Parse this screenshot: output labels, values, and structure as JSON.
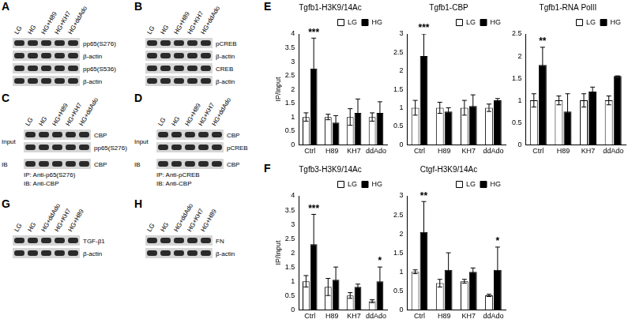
{
  "panels": [
    {
      "label": "A",
      "lanes": [
        "LG",
        "HG",
        "HG+H89",
        "HG+KH7",
        "HG+ddAdo"
      ],
      "rows": [
        {
          "name": "pp65(S276)"
        },
        {
          "name": "β-actin"
        },
        {
          "name": "pp65(S536)"
        },
        {
          "name": "β-actin"
        }
      ],
      "notes": []
    },
    {
      "label": "B",
      "lanes": [
        "LG",
        "HG",
        "HG+H89",
        "HG+KH7",
        "HG+ddAdo"
      ],
      "rows": [
        {
          "name": "pCREB"
        },
        {
          "name": "β-actin"
        },
        {
          "name": "CREB"
        },
        {
          "name": "β-actin"
        }
      ],
      "notes": []
    },
    {
      "label": "C",
      "lanes": [
        "LG",
        "HG",
        "HG+H89",
        "HG+KH7",
        "HG+ddAdo"
      ],
      "rows": [
        {
          "name": "CBP",
          "group": "Input"
        },
        {
          "name": "pp65(S276)",
          "group": "Input"
        },
        {
          "name": "CBP",
          "group": "IB"
        }
      ],
      "notes": [
        "IP: Anti-p65(S276)",
        "IB: Anti-CBP"
      ]
    },
    {
      "label": "D",
      "lanes": [
        "LG",
        "HG",
        "HG+H89",
        "HG+KH7",
        "HG+ddAdo"
      ],
      "rows": [
        {
          "name": "CBP",
          "group": "Input"
        },
        {
          "name": "pCREB",
          "group": "Input"
        },
        {
          "name": "CBP",
          "group": "IB"
        }
      ],
      "notes": [
        "IP: Anti-pCREB",
        "IB: Anti-CBP"
      ]
    },
    {
      "label": "G",
      "lanes": [
        "LG",
        "HG",
        "HG+ddAdo",
        "HG+KH7",
        "HG+H89"
      ],
      "rows": [
        {
          "name": "TGF-β1"
        },
        {
          "name": "β-actin"
        }
      ],
      "notes": []
    },
    {
      "label": "H",
      "lanes": [
        "LG",
        "HG",
        "HG+ddAdo",
        "HG+KH7",
        "HG+H89"
      ],
      "rows": [
        {
          "name": "FN"
        },
        {
          "name": "β-actin"
        }
      ],
      "notes": []
    }
  ],
  "chart_panel_labels": [
    "E",
    "F"
  ],
  "chart_data": [
    {
      "type": "bar",
      "title": "Tgfb1-H3K9/14Ac",
      "y_label": "IP/Input",
      "categories": [
        "Ctrl",
        "H89",
        "KH7",
        "ddAdo"
      ],
      "series": [
        {
          "name": "LG",
          "color": "#ffffff",
          "values": [
            1.0,
            1.0,
            1.0,
            1.0
          ],
          "errors": [
            0.15,
            0.1,
            0.3,
            0.15
          ]
        },
        {
          "name": "HG",
          "color": "#000000",
          "values": [
            2.75,
            0.8,
            1.15,
            1.15
          ],
          "errors": [
            1.1,
            0.25,
            0.5,
            0.4
          ]
        }
      ],
      "ylim": [
        0,
        4
      ],
      "yticks": [
        0,
        0.5,
        1,
        1.5,
        2,
        2.5,
        3,
        3.5,
        4
      ],
      "grid": false,
      "legend": "upper right",
      "annotations": [
        {
          "text": "***",
          "category": "Ctrl",
          "series": "HG"
        }
      ]
    },
    {
      "type": "bar",
      "title": "Tgfb1-CBP",
      "categories": [
        "Ctrl",
        "H89",
        "KH7",
        "ddAdo"
      ],
      "series": [
        {
          "name": "LG",
          "color": "#ffffff",
          "values": [
            1.0,
            1.0,
            1.0,
            1.0
          ],
          "errors": [
            0.2,
            0.15,
            0.2,
            0.1
          ]
        },
        {
          "name": "HG",
          "color": "#000000",
          "values": [
            2.4,
            0.9,
            1.05,
            1.2
          ],
          "errors": [
            0.6,
            0.1,
            0.3,
            0.05
          ]
        }
      ],
      "ylim": [
        0,
        3
      ],
      "yticks": [
        0,
        0.5,
        1,
        1.5,
        2,
        2.5,
        3
      ],
      "grid": false,
      "legend": "upper right",
      "annotations": [
        {
          "text": "***",
          "category": "Ctrl",
          "series": "HG"
        }
      ]
    },
    {
      "type": "bar",
      "title": "Tgfb1-RNA PolII",
      "categories": [
        "Ctrl",
        "H89",
        "KH7",
        "ddAdo"
      ],
      "series": [
        {
          "name": "LG",
          "color": "#ffffff",
          "values": [
            1.0,
            1.0,
            1.0,
            1.0
          ],
          "errors": [
            0.15,
            0.1,
            0.15,
            0.1
          ]
        },
        {
          "name": "HG",
          "color": "#000000",
          "values": [
            1.8,
            0.75,
            1.2,
            1.55
          ],
          "errors": [
            0.4,
            0.4,
            0.1,
            0
          ]
        }
      ],
      "ylim": [
        0,
        2.5
      ],
      "yticks": [
        0,
        0.5,
        1,
        1.5,
        2,
        2.5
      ],
      "grid": false,
      "legend": "upper right",
      "annotations": [
        {
          "text": "**",
          "category": "Ctrl",
          "series": "HG"
        }
      ]
    },
    {
      "type": "bar",
      "title": "Tgfb3-H3K9/14Ac",
      "y_label": "IP/Input",
      "categories": [
        "Ctrl",
        "H89",
        "KH7",
        "ddAdo"
      ],
      "series": [
        {
          "name": "LG",
          "color": "#ffffff",
          "values": [
            1.0,
            0.8,
            0.5,
            0.3
          ],
          "errors": [
            0.2,
            0.3,
            0.1,
            0.05
          ]
        },
        {
          "name": "HG",
          "color": "#000000",
          "values": [
            2.3,
            1.05,
            0.8,
            1.0
          ],
          "errors": [
            1.05,
            0.45,
            0.1,
            0.5
          ]
        }
      ],
      "ylim": [
        0,
        4
      ],
      "yticks": [
        0,
        0.5,
        1,
        1.5,
        2,
        2.5,
        3,
        3.5,
        4
      ],
      "grid": false,
      "legend": "upper right",
      "annotations": [
        {
          "text": "***",
          "category": "Ctrl",
          "series": "HG"
        },
        {
          "text": "*",
          "category": "ddAdo",
          "series": "HG"
        }
      ]
    },
    {
      "type": "bar",
      "title": "Ctgf-H3K9/14Ac",
      "categories": [
        "Ctrl",
        "H89",
        "KH7",
        "ddAdo"
      ],
      "series": [
        {
          "name": "LG",
          "color": "#ffffff",
          "values": [
            1.0,
            0.7,
            0.75,
            0.38
          ],
          "errors": [
            0.05,
            0.1,
            0.05,
            0.03
          ]
        },
        {
          "name": "HG",
          "color": "#000000",
          "values": [
            2.05,
            1.05,
            1.0,
            1.05
          ],
          "errors": [
            0.8,
            0.45,
            0.1,
            0.6
          ]
        }
      ],
      "ylim": [
        0,
        3
      ],
      "yticks": [
        0,
        0.5,
        1,
        1.5,
        2,
        2.5,
        3
      ],
      "grid": false,
      "legend": "upper right",
      "annotations": [
        {
          "text": "**",
          "category": "Ctrl",
          "series": "HG"
        },
        {
          "text": "*",
          "category": "ddAdo",
          "series": "HG"
        }
      ]
    }
  ]
}
